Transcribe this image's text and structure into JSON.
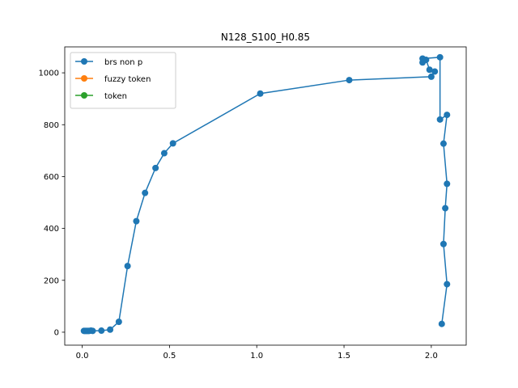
{
  "chart_data": {
    "type": "line",
    "title": "N128_S100_H0.85",
    "xlabel": "",
    "ylabel": "",
    "xlim": [
      -0.1,
      2.2
    ],
    "ylim": [
      -50,
      1100
    ],
    "x_ticks": [
      0.0,
      0.5,
      1.0,
      1.5,
      2.0
    ],
    "x_tick_labels": [
      "0.0",
      "0.5",
      "1.0",
      "1.5",
      "2.0"
    ],
    "y_ticks": [
      0,
      200,
      400,
      600,
      800,
      1000
    ],
    "y_tick_labels": [
      "0",
      "200",
      "400",
      "600",
      "800",
      "1000"
    ],
    "grid": false,
    "legend_position": "top-left",
    "series": [
      {
        "name": "brs non p",
        "color": "#1f77b4",
        "points": [
          [
            0.01,
            5
          ],
          [
            0.015,
            5
          ],
          [
            0.02,
            5
          ],
          [
            0.025,
            5
          ],
          [
            0.03,
            5
          ],
          [
            0.035,
            5
          ],
          [
            0.04,
            5
          ],
          [
            0.05,
            6
          ],
          [
            0.06,
            5
          ],
          [
            0.11,
            6
          ],
          [
            0.16,
            10
          ],
          [
            0.21,
            40
          ],
          [
            0.26,
            255
          ],
          [
            0.31,
            428
          ],
          [
            0.36,
            537
          ],
          [
            0.42,
            633
          ],
          [
            0.47,
            690
          ],
          [
            0.52,
            728
          ],
          [
            1.02,
            920
          ],
          [
            1.53,
            972
          ],
          [
            2.0,
            985
          ],
          [
            2.02,
            1005
          ],
          [
            1.99,
            1012
          ],
          [
            1.97,
            1050
          ],
          [
            1.95,
            1040
          ],
          [
            1.95,
            1055
          ],
          [
            2.05,
            1060
          ],
          [
            2.05,
            820
          ],
          [
            2.09,
            838
          ],
          [
            2.07,
            727
          ],
          [
            2.09,
            572
          ],
          [
            2.08,
            478
          ],
          [
            2.07,
            340
          ],
          [
            2.09,
            185
          ],
          [
            2.06,
            32
          ]
        ]
      },
      {
        "name": "fuzzy token",
        "color": "#ff7f0e",
        "points": []
      },
      {
        "name": "token",
        "color": "#2ca02c",
        "points": []
      }
    ]
  }
}
